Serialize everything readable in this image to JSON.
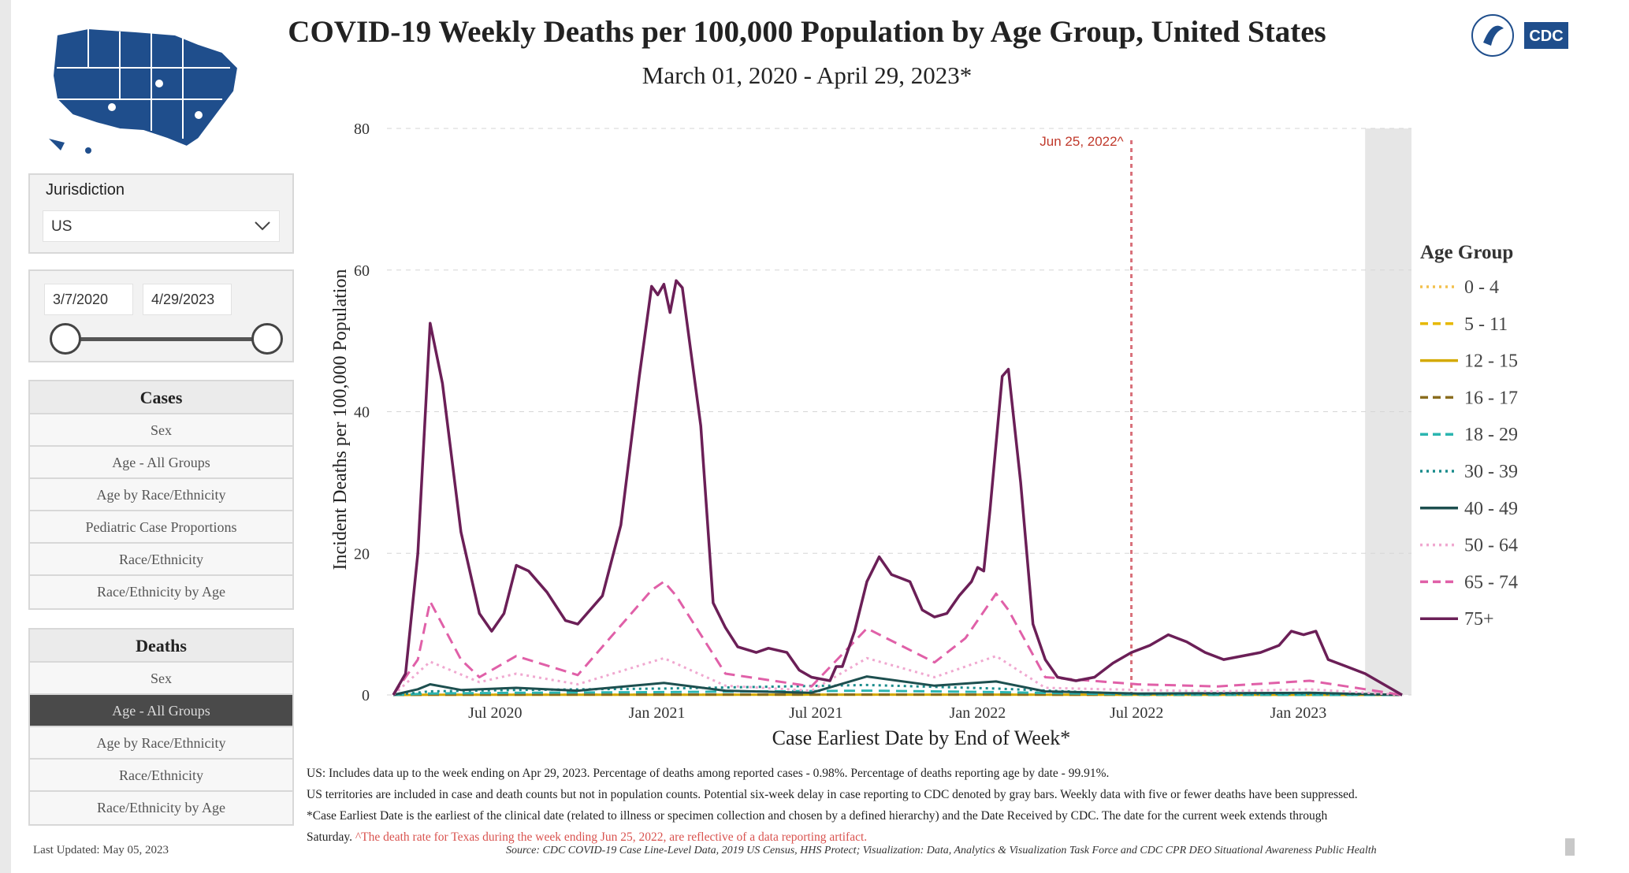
{
  "header": {
    "title": "COVID-19 Weekly Deaths per 100,000 Population by Age Group, United States",
    "subtitle": "March 01, 2020 - April 29, 2023*",
    "logo_text": "CDC"
  },
  "filters": {
    "jurisdiction_label": "Jurisdiction",
    "jurisdiction_value": "US",
    "date_start": "3/7/2020",
    "date_end": "4/29/2023"
  },
  "cases_menu": {
    "heading": "Cases",
    "items": [
      "Sex",
      "Age - All Groups",
      "Age by Race/Ethnicity",
      "Pediatric Case Proportions",
      "Race/Ethnicity",
      "Race/Ethnicity by Age"
    ]
  },
  "deaths_menu": {
    "heading": "Deaths",
    "items": [
      "Sex",
      "Age - All Groups",
      "Age by Race/Ethnicity",
      "Race/Ethnicity",
      "Race/Ethnicity by Age"
    ],
    "selected": "Age - All Groups"
  },
  "last_updated": "Last Updated: May 05, 2023",
  "footnotes": {
    "line1": "US: Includes data up to the week ending on Apr 29, 2023. Percentage of deaths among reported cases - 0.98%. Percentage of deaths reporting age by date - 99.91%.",
    "line2": "US territories are included in case and death counts but not in population counts. Potential six-week delay in case reporting to CDC denoted by gray bars. Weekly data with five or fewer deaths have been suppressed.",
    "line3": "*Case Earliest Date is the earliest of the clinical date (related to illness or specimen collection and chosen by a defined hierarchy) and the Date Received by CDC. The date for the current week extends through",
    "line4_prefix": "Saturday.",
    "line4_red": "^The death rate for Texas during the week ending Jun 25, 2022, are reflective of a data reporting artifact.",
    "source": "Source: CDC COVID-19 Case Line-Level Data, 2019 US Census, HHS Protect; Visualization: Data, Analytics & Visualization Task Force and CDC CPR DEO Situational Awareness Public Health"
  },
  "chart_data": {
    "type": "line",
    "xlabel": "Case Earliest Date by End of Week*",
    "ylabel": "Incident Deaths per 100,000 Population",
    "ylim": [
      0,
      80
    ],
    "yticks": [
      0,
      20,
      40,
      60,
      80
    ],
    "xlim": [
      "2020-03-07",
      "2023-04-29"
    ],
    "xticks": [
      {
        "date": "2020-07-01",
        "label": "Jul 2020"
      },
      {
        "date": "2021-01-01",
        "label": "Jan 2021"
      },
      {
        "date": "2021-07-01",
        "label": "Jul 2021"
      },
      {
        "date": "2022-01-01",
        "label": "Jan 2022"
      },
      {
        "date": "2022-07-01",
        "label": "Jul 2022"
      },
      {
        "date": "2023-01-01",
        "label": "Jan 2023"
      }
    ],
    "grid": "horizontal dashed",
    "legend_title": "Age Group",
    "legend_position": "right",
    "annotation": {
      "date": "2022-06-25",
      "label": "Jun 25, 2022^",
      "color": "#d9707a"
    },
    "shaded_region": {
      "from": "2023-03-18",
      "to": "2023-04-29",
      "color": "#e6e6e6"
    },
    "series": [
      {
        "name": "0 - 4",
        "color": "#f2c14e",
        "dash": "dotted",
        "points": [
          [
            "2020-03-07",
            0
          ],
          [
            "2020-04-18",
            0.05
          ],
          [
            "2021-01-09",
            0.05
          ],
          [
            "2022-01-22",
            0.05
          ],
          [
            "2023-04-29",
            0
          ]
        ]
      },
      {
        "name": "5 - 11",
        "color": "#e6b800",
        "dash": "dashed",
        "points": [
          [
            "2020-03-07",
            0
          ],
          [
            "2020-04-18",
            0.03
          ],
          [
            "2021-01-09",
            0.03
          ],
          [
            "2022-01-22",
            0.03
          ],
          [
            "2023-04-29",
            0
          ]
        ]
      },
      {
        "name": "12 - 15",
        "color": "#d4a900",
        "dash": "solid",
        "points": [
          [
            "2020-03-07",
            0
          ],
          [
            "2020-04-18",
            0.03
          ],
          [
            "2021-01-09",
            0.03
          ],
          [
            "2022-01-22",
            0.04
          ],
          [
            "2023-04-29",
            0
          ]
        ]
      },
      {
        "name": "16 - 17",
        "color": "#8a6d1f",
        "dash": "dashed",
        "points": [
          [
            "2020-03-07",
            0
          ],
          [
            "2020-04-18",
            0.05
          ],
          [
            "2021-01-09",
            0.06
          ],
          [
            "2022-01-22",
            0.06
          ],
          [
            "2023-04-29",
            0
          ]
        ]
      },
      {
        "name": "18 - 29",
        "color": "#2bb5b0",
        "dash": "dashed",
        "points": [
          [
            "2020-03-07",
            0
          ],
          [
            "2020-04-18",
            0.2
          ],
          [
            "2020-07-25",
            0.3
          ],
          [
            "2021-01-09",
            0.4
          ],
          [
            "2021-08-28",
            0.6
          ],
          [
            "2022-01-22",
            0.4
          ],
          [
            "2022-07-02",
            0.05
          ],
          [
            "2023-04-29",
            0
          ]
        ]
      },
      {
        "name": "30 - 39",
        "color": "#1a8c8c",
        "dash": "dotted",
        "points": [
          [
            "2020-03-07",
            0
          ],
          [
            "2020-04-18",
            0.5
          ],
          [
            "2020-07-25",
            0.7
          ],
          [
            "2021-01-09",
            0.9
          ],
          [
            "2021-08-28",
            1.4
          ],
          [
            "2022-01-22",
            0.9
          ],
          [
            "2022-07-02",
            0.1
          ],
          [
            "2023-01-14",
            0.15
          ],
          [
            "2023-04-29",
            0
          ]
        ]
      },
      {
        "name": "40 - 49",
        "color": "#1d4f4f",
        "dash": "solid",
        "points": [
          [
            "2020-03-07",
            0
          ],
          [
            "2020-04-04",
            0.8
          ],
          [
            "2020-04-18",
            1.5
          ],
          [
            "2020-05-23",
            0.7
          ],
          [
            "2020-07-25",
            1.0
          ],
          [
            "2020-10-03",
            0.6
          ],
          [
            "2021-01-09",
            1.7
          ],
          [
            "2021-03-20",
            0.6
          ],
          [
            "2021-06-26",
            0.3
          ],
          [
            "2021-08-28",
            2.6
          ],
          [
            "2021-11-13",
            1.3
          ],
          [
            "2022-01-22",
            1.9
          ],
          [
            "2022-03-19",
            0.5
          ],
          [
            "2022-07-02",
            0.2
          ],
          [
            "2023-01-14",
            0.3
          ],
          [
            "2023-04-29",
            0
          ]
        ]
      },
      {
        "name": "50 - 64",
        "color": "#f0a8d0",
        "dash": "dotted",
        "points": [
          [
            "2020-03-07",
            0
          ],
          [
            "2020-04-18",
            4.7
          ],
          [
            "2020-06-13",
            1.8
          ],
          [
            "2020-07-25",
            3.0
          ],
          [
            "2020-10-03",
            1.5
          ],
          [
            "2021-01-09",
            5.2
          ],
          [
            "2021-03-20",
            1.3
          ],
          [
            "2021-06-26",
            0.6
          ],
          [
            "2021-08-28",
            5.2
          ],
          [
            "2021-11-13",
            2.5
          ],
          [
            "2022-01-22",
            5.5
          ],
          [
            "2022-03-19",
            1.0
          ],
          [
            "2022-07-02",
            0.7
          ],
          [
            "2022-10-01",
            0.5
          ],
          [
            "2023-01-14",
            0.8
          ],
          [
            "2023-04-29",
            0
          ]
        ]
      },
      {
        "name": "65 - 74",
        "color": "#e060a8",
        "dash": "dashed",
        "points": [
          [
            "2020-03-07",
            0
          ],
          [
            "2020-04-04",
            5
          ],
          [
            "2020-04-18",
            13.2
          ],
          [
            "2020-05-23",
            5
          ],
          [
            "2020-06-13",
            2.5
          ],
          [
            "2020-07-25",
            5.5
          ],
          [
            "2020-10-03",
            2.8
          ],
          [
            "2020-12-26",
            14.8
          ],
          [
            "2021-01-09",
            16
          ],
          [
            "2021-01-23",
            14
          ],
          [
            "2021-03-20",
            3.0
          ],
          [
            "2021-06-26",
            1.2
          ],
          [
            "2021-08-28",
            9.4
          ],
          [
            "2021-11-13",
            4.6
          ],
          [
            "2021-12-18",
            8
          ],
          [
            "2022-01-22",
            14.3
          ],
          [
            "2022-02-05",
            12
          ],
          [
            "2022-03-19",
            2.5
          ],
          [
            "2022-07-02",
            1.5
          ],
          [
            "2022-10-01",
            1.2
          ],
          [
            "2023-01-14",
            2.0
          ],
          [
            "2023-03-18",
            0.8
          ],
          [
            "2023-04-29",
            0
          ]
        ]
      },
      {
        "name": "75+",
        "color": "#6b1f57",
        "dash": "solid",
        "points": [
          [
            "2020-03-07",
            0
          ],
          [
            "2020-03-21",
            3
          ],
          [
            "2020-04-04",
            20
          ],
          [
            "2020-04-18",
            52.5
          ],
          [
            "2020-05-02",
            44
          ],
          [
            "2020-05-23",
            23
          ],
          [
            "2020-06-13",
            11.5
          ],
          [
            "2020-06-27",
            9
          ],
          [
            "2020-07-11",
            11.5
          ],
          [
            "2020-07-25",
            18.3
          ],
          [
            "2020-08-08",
            17.5
          ],
          [
            "2020-08-29",
            14.5
          ],
          [
            "2020-09-19",
            10.5
          ],
          [
            "2020-10-03",
            10
          ],
          [
            "2020-10-31",
            14
          ],
          [
            "2020-11-21",
            24
          ],
          [
            "2020-12-12",
            45
          ],
          [
            "2020-12-26",
            57.7
          ],
          [
            "2021-01-02",
            56.5
          ],
          [
            "2021-01-09",
            58
          ],
          [
            "2021-01-16",
            54
          ],
          [
            "2021-01-23",
            58.5
          ],
          [
            "2021-01-30",
            57.5
          ],
          [
            "2021-02-20",
            38
          ],
          [
            "2021-03-06",
            13
          ],
          [
            "2021-03-20",
            9.5
          ],
          [
            "2021-04-03",
            6.8
          ],
          [
            "2021-04-24",
            6
          ],
          [
            "2021-05-08",
            6.6
          ],
          [
            "2021-05-29",
            6
          ],
          [
            "2021-06-12",
            3.5
          ],
          [
            "2021-06-26",
            2.5
          ],
          [
            "2021-07-17",
            2.0
          ],
          [
            "2021-07-24",
            4
          ],
          [
            "2021-07-31",
            4
          ],
          [
            "2021-08-14",
            9
          ],
          [
            "2021-08-28",
            16
          ],
          [
            "2021-09-11",
            19.5
          ],
          [
            "2021-09-25",
            17
          ],
          [
            "2021-10-16",
            16
          ],
          [
            "2021-10-30",
            12
          ],
          [
            "2021-11-13",
            11
          ],
          [
            "2021-11-27",
            11.5
          ],
          [
            "2021-12-11",
            14
          ],
          [
            "2021-12-25",
            16
          ],
          [
            "2022-01-01",
            18
          ],
          [
            "2022-01-08",
            17.5
          ],
          [
            "2022-01-15",
            26
          ],
          [
            "2022-01-29",
            45
          ],
          [
            "2022-02-05",
            46
          ],
          [
            "2022-02-19",
            30
          ],
          [
            "2022-03-05",
            10
          ],
          [
            "2022-03-19",
            5
          ],
          [
            "2022-04-02",
            2.5
          ],
          [
            "2022-04-23",
            2
          ],
          [
            "2022-05-14",
            2.5
          ],
          [
            "2022-06-04",
            4.5
          ],
          [
            "2022-06-25",
            6
          ],
          [
            "2022-07-16",
            7
          ],
          [
            "2022-08-06",
            8.5
          ],
          [
            "2022-08-27",
            7.5
          ],
          [
            "2022-09-17",
            6
          ],
          [
            "2022-10-08",
            5
          ],
          [
            "2022-10-29",
            5.5
          ],
          [
            "2022-11-19",
            6
          ],
          [
            "2022-12-10",
            7
          ],
          [
            "2022-12-24",
            9
          ],
          [
            "2023-01-07",
            8.5
          ],
          [
            "2023-01-21",
            9
          ],
          [
            "2023-02-04",
            5
          ],
          [
            "2023-02-25",
            4
          ],
          [
            "2023-03-18",
            3
          ],
          [
            "2023-04-08",
            1.5
          ],
          [
            "2023-04-29",
            0
          ]
        ]
      }
    ]
  }
}
